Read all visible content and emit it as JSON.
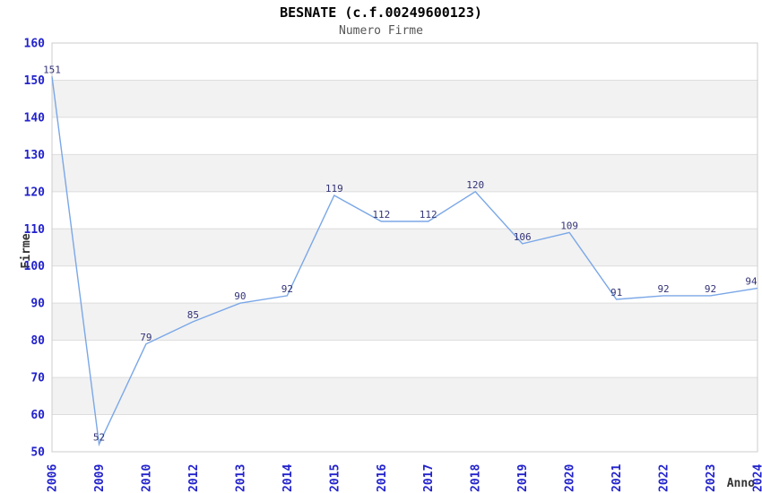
{
  "header": {
    "title": "BESNATE (c.f.00249600123)",
    "subtitle": "Numero Firme"
  },
  "chart_data": {
    "type": "line",
    "title": "BESNATE (c.f.00249600123)",
    "subtitle": "Numero Firme",
    "xlabel": "Anno",
    "ylabel": "Firme",
    "categories": [
      "2006",
      "2009",
      "2010",
      "2012",
      "2013",
      "2014",
      "2015",
      "2016",
      "2017",
      "2018",
      "2019",
      "2020",
      "2021",
      "2022",
      "2023",
      "2024"
    ],
    "values": [
      151,
      52,
      79,
      85,
      90,
      92,
      119,
      112,
      112,
      120,
      106,
      109,
      91,
      92,
      92,
      94
    ],
    "point_labels": [
      "151",
      "52",
      "79",
      "85",
      "90",
      "92",
      "119",
      "112",
      "112",
      "120",
      "106",
      "109",
      "91",
      "92",
      "92",
      "94"
    ],
    "ylim": [
      50,
      160
    ],
    "y_ticks": [
      50,
      60,
      70,
      80,
      90,
      100,
      110,
      120,
      130,
      140,
      150,
      160
    ],
    "grid": "horizontal-lines-with-alternating-bands",
    "legend": "none",
    "x_tick_rotation_deg": -90,
    "colors": {
      "line": "#7AA7E7",
      "tick_label": "#2222CC",
      "point_label": "#333377",
      "band": "#F2F2F2",
      "grid": "#DDDDDD",
      "border": "#CCCCCC",
      "title_text": "#000000",
      "subtitle_text": "#555555",
      "axis_title_text": "#333333",
      "background": "#FFFFFF"
    }
  }
}
